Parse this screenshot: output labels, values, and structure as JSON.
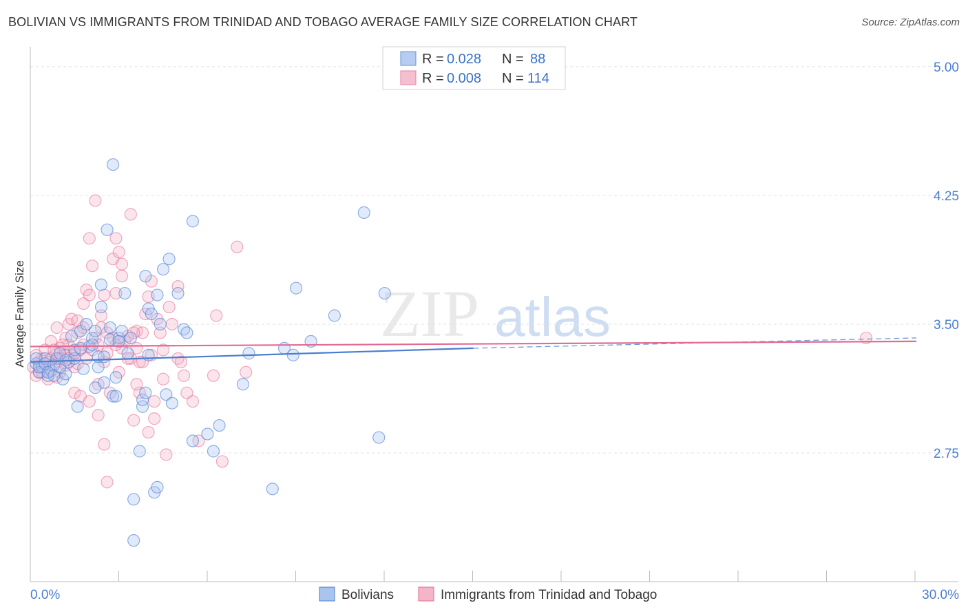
{
  "title": "BOLIVIAN VS IMMIGRANTS FROM TRINIDAD AND TOBAGO AVERAGE FAMILY SIZE CORRELATION CHART",
  "source": "Source: ZipAtlas.com",
  "watermark": {
    "zip": "ZIP",
    "atlas": "atlas"
  },
  "colors": {
    "blue": "#4a7fd0",
    "blue_fill": "#aac4f0",
    "pink": "#e36a92",
    "pink_fill": "#f4b5c8",
    "grid": "#e2e2e2"
  },
  "legend": {
    "rows": [
      {
        "r_label": "R =",
        "r_value": "0.028",
        "n_label": "N =",
        "n_value": "88"
      },
      {
        "r_label": "R =",
        "r_value": "0.008",
        "n_label": "N =",
        "n_value": "114"
      }
    ]
  },
  "chart_data": {
    "type": "scatter",
    "title": "BOLIVIAN VS IMMIGRANTS FROM TRINIDAD AND TOBAGO AVERAGE FAMILY SIZE CORRELATION CHART",
    "ylabel": "Average Family Size",
    "xlabel": "",
    "xlim": [
      0,
      30
    ],
    "ylim": [
      2.0,
      5.1
    ],
    "x_tick_labels": [
      "0.0%",
      "30.0%"
    ],
    "y_ticks": [
      2.75,
      3.5,
      4.25,
      5.0
    ],
    "y_tick_labels": [
      "2.75",
      "3.50",
      "4.25",
      "5.00"
    ],
    "series": [
      {
        "name": "Bolivians",
        "trend": {
          "x0": 0,
          "y0": 3.28,
          "x1": 15,
          "y1": 3.36,
          "x_dash_end": 30,
          "y_dash_end": 3.42
        },
        "points": [
          [
            0.2,
            3.27
          ],
          [
            0.3,
            3.22
          ],
          [
            0.4,
            3.25
          ],
          [
            0.5,
            3.3
          ],
          [
            0.6,
            3.2
          ],
          [
            0.7,
            3.23
          ],
          [
            0.8,
            3.26
          ],
          [
            0.9,
            3.3
          ],
          [
            1.0,
            3.33
          ],
          [
            1.1,
            3.18
          ],
          [
            1.2,
            3.21
          ],
          [
            1.3,
            3.28
          ],
          [
            1.4,
            3.43
          ],
          [
            1.5,
            3.3
          ],
          [
            1.6,
            3.02
          ],
          [
            1.7,
            3.46
          ],
          [
            1.8,
            3.24
          ],
          [
            1.9,
            3.5
          ],
          [
            2.0,
            3.37
          ],
          [
            2.1,
            3.42
          ],
          [
            2.1,
            3.38
          ],
          [
            2.2,
            3.13
          ],
          [
            2.2,
            3.46
          ],
          [
            2.3,
            3.25
          ],
          [
            2.3,
            3.31
          ],
          [
            2.4,
            3.6
          ],
          [
            2.4,
            3.73
          ],
          [
            2.5,
            3.16
          ],
          [
            2.6,
            4.05
          ],
          [
            2.7,
            3.48
          ],
          [
            2.7,
            3.41
          ],
          [
            2.8,
            4.43
          ],
          [
            2.8,
            3.08
          ],
          [
            2.9,
            3.19
          ],
          [
            2.9,
            3.08
          ],
          [
            3.0,
            3.42
          ],
          [
            3.1,
            3.46
          ],
          [
            3.2,
            3.68
          ],
          [
            3.3,
            3.33
          ],
          [
            3.4,
            3.42
          ],
          [
            3.5,
            2.24
          ],
          [
            3.5,
            2.48
          ],
          [
            3.7,
            2.76
          ],
          [
            3.8,
            3.02
          ],
          [
            3.8,
            3.06
          ],
          [
            3.9,
            3.1
          ],
          [
            3.9,
            3.78
          ],
          [
            4.0,
            3.59
          ],
          [
            4.1,
            3.56
          ],
          [
            4.2,
            2.52
          ],
          [
            4.3,
            2.55
          ],
          [
            4.3,
            3.67
          ],
          [
            4.4,
            3.5
          ],
          [
            4.5,
            3.82
          ],
          [
            4.6,
            3.09
          ],
          [
            4.7,
            3.88
          ],
          [
            4.8,
            3.04
          ],
          [
            5.0,
            3.68
          ],
          [
            5.2,
            3.47
          ],
          [
            5.3,
            3.45
          ],
          [
            5.5,
            4.1
          ],
          [
            5.5,
            2.82
          ],
          [
            6.0,
            2.86
          ],
          [
            6.2,
            2.76
          ],
          [
            6.4,
            2.91
          ],
          [
            7.2,
            3.15
          ],
          [
            7.4,
            3.33
          ],
          [
            8.2,
            2.54
          ],
          [
            8.6,
            3.36
          ],
          [
            8.9,
            3.32
          ],
          [
            9.0,
            3.71
          ],
          [
            9.5,
            3.4
          ],
          [
            10.3,
            3.55
          ],
          [
            11.3,
            4.15
          ],
          [
            11.8,
            2.84
          ],
          [
            12.0,
            3.68
          ],
          [
            0.2,
            3.3
          ],
          [
            0.3,
            3.25
          ],
          [
            0.5,
            3.27
          ],
          [
            0.6,
            3.22
          ],
          [
            0.8,
            3.2
          ],
          [
            1.0,
            3.25
          ],
          [
            1.2,
            3.29
          ],
          [
            1.5,
            3.35
          ],
          [
            1.7,
            3.36
          ],
          [
            2.5,
            3.31
          ],
          [
            3.0,
            3.4
          ],
          [
            4.0,
            3.32
          ]
        ]
      },
      {
        "name": "Immigrants from Trinidad and Tobago",
        "trend": {
          "x0": 0,
          "y0": 3.37,
          "x1": 30,
          "y1": 3.4,
          "x_dash_end": 30,
          "y_dash_end": 3.4
        },
        "points": [
          [
            0.1,
            3.25
          ],
          [
            0.2,
            3.2
          ],
          [
            0.3,
            3.28
          ],
          [
            0.3,
            3.22
          ],
          [
            0.4,
            3.3
          ],
          [
            0.5,
            3.25
          ],
          [
            0.5,
            3.35
          ],
          [
            0.6,
            3.18
          ],
          [
            0.7,
            3.3
          ],
          [
            0.7,
            3.4
          ],
          [
            0.8,
            3.27
          ],
          [
            0.9,
            3.33
          ],
          [
            0.9,
            3.48
          ],
          [
            1.0,
            3.36
          ],
          [
            1.0,
            3.22
          ],
          [
            1.1,
            3.3
          ],
          [
            1.2,
            3.42
          ],
          [
            1.2,
            3.26
          ],
          [
            1.3,
            3.38
          ],
          [
            1.3,
            3.5
          ],
          [
            1.4,
            3.32
          ],
          [
            1.4,
            3.53
          ],
          [
            1.5,
            3.25
          ],
          [
            1.5,
            3.1
          ],
          [
            1.6,
            3.45
          ],
          [
            1.6,
            3.52
          ],
          [
            1.7,
            3.08
          ],
          [
            1.7,
            3.35
          ],
          [
            1.8,
            3.48
          ],
          [
            1.8,
            3.62
          ],
          [
            1.9,
            3.3
          ],
          [
            1.9,
            3.7
          ],
          [
            2.0,
            3.05
          ],
          [
            2.0,
            3.67
          ],
          [
            2.0,
            4.0
          ],
          [
            2.1,
            3.84
          ],
          [
            2.2,
            4.22
          ],
          [
            2.2,
            3.42
          ],
          [
            2.3,
            3.15
          ],
          [
            2.3,
            2.97
          ],
          [
            2.4,
            3.55
          ],
          [
            2.4,
            3.48
          ],
          [
            2.5,
            3.28
          ],
          [
            2.5,
            3.67
          ],
          [
            2.5,
            2.8
          ],
          [
            2.6,
            3.45
          ],
          [
            2.6,
            2.58
          ],
          [
            2.7,
            3.1
          ],
          [
            2.8,
            3.42
          ],
          [
            2.8,
            3.88
          ],
          [
            2.9,
            4.0
          ],
          [
            2.9,
            3.68
          ],
          [
            3.0,
            3.92
          ],
          [
            3.0,
            3.22
          ],
          [
            3.1,
            3.85
          ],
          [
            3.1,
            3.78
          ],
          [
            3.2,
            3.4
          ],
          [
            3.3,
            3.43
          ],
          [
            3.4,
            4.14
          ],
          [
            3.4,
            3.3
          ],
          [
            3.5,
            2.94
          ],
          [
            3.6,
            3.36
          ],
          [
            3.6,
            3.46
          ],
          [
            3.7,
            3.28
          ],
          [
            3.7,
            3.1
          ],
          [
            3.8,
            3.28
          ],
          [
            3.9,
            3.56
          ],
          [
            4.0,
            3.66
          ],
          [
            4.0,
            2.87
          ],
          [
            4.1,
            3.75
          ],
          [
            4.2,
            3.05
          ],
          [
            4.2,
            2.95
          ],
          [
            4.3,
            3.53
          ],
          [
            4.4,
            3.45
          ],
          [
            4.5,
            3.35
          ],
          [
            4.6,
            2.74
          ],
          [
            4.7,
            3.6
          ],
          [
            4.8,
            3.5
          ],
          [
            5.0,
            3.3
          ],
          [
            5.0,
            3.72
          ],
          [
            5.2,
            3.2
          ],
          [
            5.3,
            3.1
          ],
          [
            5.5,
            3.05
          ],
          [
            5.7,
            2.82
          ],
          [
            6.2,
            3.2
          ],
          [
            6.3,
            3.55
          ],
          [
            6.5,
            2.7
          ],
          [
            7.0,
            3.95
          ],
          [
            7.3,
            3.22
          ],
          [
            28.3,
            3.42
          ],
          [
            0.2,
            3.32
          ],
          [
            0.4,
            3.22
          ],
          [
            0.6,
            3.28
          ],
          [
            0.8,
            3.35
          ],
          [
            1.0,
            3.3
          ],
          [
            1.1,
            3.38
          ],
          [
            1.2,
            3.32
          ],
          [
            1.3,
            3.3
          ],
          [
            1.5,
            3.33
          ],
          [
            1.8,
            3.38
          ],
          [
            2.1,
            3.35
          ],
          [
            2.3,
            3.38
          ],
          [
            2.6,
            3.33
          ],
          [
            3.1,
            3.36
          ],
          [
            3.3,
            3.3
          ],
          [
            3.6,
            3.15
          ],
          [
            3.8,
            3.45
          ],
          [
            4.1,
            3.32
          ],
          [
            4.5,
            3.18
          ],
          [
            5.1,
            3.28
          ],
          [
            1.6,
            3.27
          ],
          [
            2.9,
            3.38
          ],
          [
            3.5,
            3.45
          ],
          [
            0.9,
            3.19
          ]
        ]
      }
    ]
  },
  "bottom_legend": [
    "Bolivians",
    "Immigrants from Trinidad and Tobago"
  ]
}
